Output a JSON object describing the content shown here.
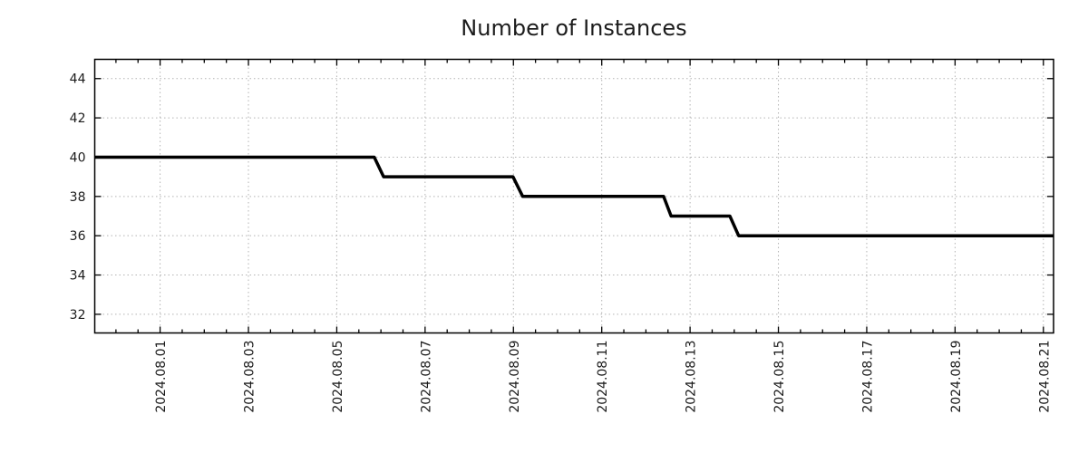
{
  "page": {
    "background_color": "#ffffff"
  },
  "chart_data": {
    "type": "line",
    "style": "step",
    "title": "Number of Instances",
    "line_color": "#000000",
    "grid_color": "#b3b3b3",
    "frame_color": "#000000",
    "text_color": "#1c1c1c",
    "legend": "none",
    "grid": true,
    "x_unit": "days since 2024-08-01 00:00",
    "xlim": [
      -1.48,
      20.23
    ],
    "ylim": [
      31.05,
      44.98
    ],
    "x_major_tick_days": [
      0,
      2,
      4,
      6,
      8,
      10,
      12,
      14,
      16,
      18,
      20
    ],
    "x_tick_labels": [
      "2024.08.01",
      "2024.08.03",
      "2024.08.05",
      "2024.08.07",
      "2024.08.09",
      "2024.08.11",
      "2024.08.13",
      "2024.08.15",
      "2024.08.17",
      "2024.08.19",
      "2024.08.21"
    ],
    "x_minor_tick_interval_days": 0.5,
    "y_ticks": [
      32,
      34,
      36,
      38,
      40,
      42,
      44
    ],
    "series": [
      {
        "name": "instances",
        "points": [
          [
            -1.48,
            40
          ],
          [
            4.85,
            40
          ],
          [
            5.06,
            39
          ],
          [
            7.99,
            39
          ],
          [
            8.21,
            38
          ],
          [
            11.4,
            38
          ],
          [
            11.57,
            37
          ],
          [
            12.9,
            37
          ],
          [
            13.1,
            36
          ],
          [
            20.23,
            36
          ]
        ]
      }
    ],
    "steps_summary": [
      {
        "value": 40,
        "from": "start (2024.07.30)",
        "until": "2024.08.06"
      },
      {
        "value": 39,
        "from": "2024.08.06",
        "until": "2024.08.09"
      },
      {
        "value": 38,
        "from": "2024.08.09",
        "until": "2024.08.12"
      },
      {
        "value": 37,
        "from": "2024.08.12",
        "until": "2024.08.14"
      },
      {
        "value": 36,
        "from": "2024.08.14",
        "until": "end (2024.08.21)"
      }
    ]
  }
}
